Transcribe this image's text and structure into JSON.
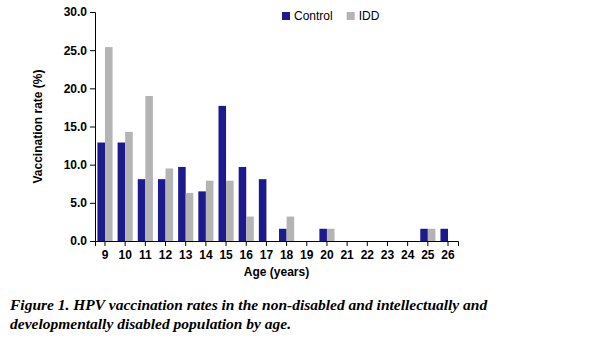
{
  "chart_data": {
    "type": "bar",
    "title": "Figure 1. HPV vaccination rates in the non-disabled and intellectually and developmentally disabled population by age.",
    "x_label": "Age (years)",
    "y_label": "Vaccination rate (%)",
    "categories": [
      "9",
      "10",
      "11",
      "12",
      "13",
      "14",
      "15",
      "16",
      "17",
      "18",
      "19",
      "20",
      "21",
      "22",
      "23",
      "24",
      "25",
      "26"
    ],
    "series": [
      {
        "name": "Control",
        "color": "#1c1a8c",
        "values": [
          12.9,
          12.9,
          8.1,
          8.1,
          9.7,
          6.5,
          17.7,
          9.7,
          8.1,
          1.6,
          0,
          1.6,
          0,
          0,
          0,
          0,
          1.6,
          1.6
        ]
      },
      {
        "name": "IDD",
        "color": "#b4b4b4",
        "values": [
          25.4,
          14.3,
          19.0,
          9.5,
          6.3,
          7.9,
          7.9,
          3.2,
          0,
          3.2,
          0,
          1.6,
          0,
          0,
          0,
          0,
          1.6,
          0
        ]
      }
    ],
    "ylim": [
      0,
      30
    ],
    "yticks": [
      {
        "value": 0,
        "label": "0.0"
      },
      {
        "value": 5,
        "label": "5.0"
      },
      {
        "value": 10,
        "label": "10.0"
      },
      {
        "value": 15,
        "label": "15.0"
      },
      {
        "value": 20,
        "label": "20.0"
      },
      {
        "value": 25,
        "label": "25.0"
      },
      {
        "value": 30,
        "label": "30.0"
      }
    ],
    "grid": false,
    "legend": "top"
  }
}
